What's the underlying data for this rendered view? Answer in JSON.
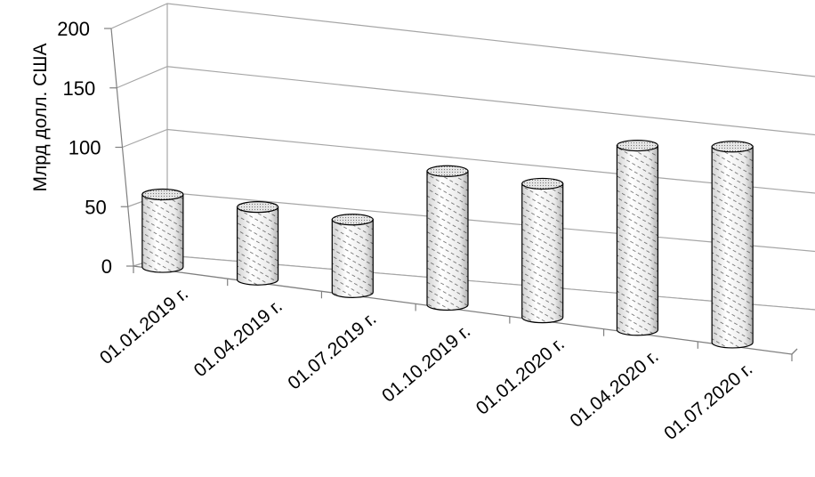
{
  "chart_data": {
    "type": "bar",
    "bar_shape": "3d-cylinder",
    "categories": [
      "01.01.2019 г.",
      "01.04.2019 г.",
      "01.07.2019 г.",
      "01.10.2019 г.",
      "01.01.2020 г.",
      "01.04.2020 г.",
      "01.07.2020 г."
    ],
    "values": [
      63,
      63,
      63,
      116,
      116,
      160,
      170
    ],
    "title": "",
    "xlabel": "",
    "ylabel": "Млрд долл. США",
    "ylim": [
      0,
      200
    ],
    "yticks": [
      "0",
      "50",
      "100",
      "150",
      "200"
    ],
    "grid": true,
    "legend": "none",
    "colors": {
      "bar_stroke": "#000000",
      "hatch": "#555555",
      "grid": "#a6a6a6",
      "axis": "#808080"
    }
  }
}
